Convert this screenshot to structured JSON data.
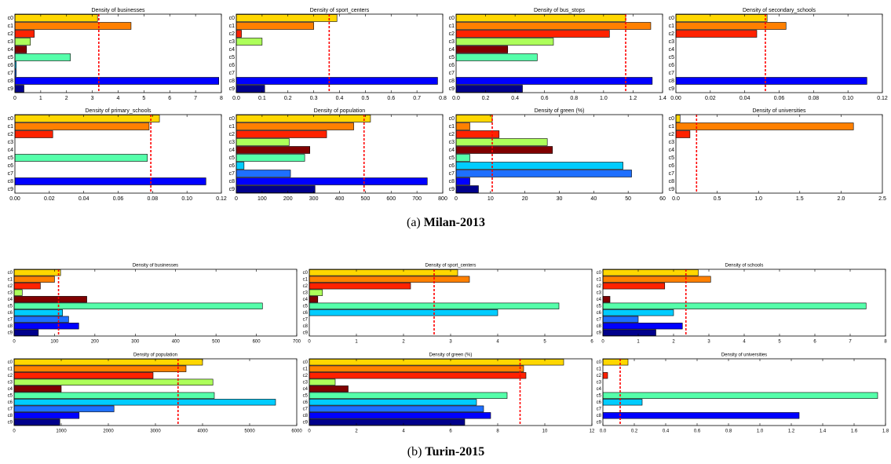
{
  "chart_data": [
    {
      "type": "bar",
      "orientation": "horizontal",
      "title": "Density of businesses",
      "categories": [
        "c0",
        "c1",
        "c2",
        "c3",
        "c4",
        "c5",
        "c6",
        "c7",
        "c8",
        "c9"
      ],
      "values": [
        3.2,
        4.5,
        0.75,
        0.6,
        0.45,
        2.15,
        0.05,
        0.05,
        7.9,
        0.35
      ],
      "colors": [
        "#ffd700",
        "#ff8000",
        "#ff2200",
        "#adff5a",
        "#800000",
        "#55ffaa",
        "#00ccff",
        "#1e6fff",
        "#0000ff",
        "#00008b"
      ],
      "xlim": [
        0,
        8
      ],
      "xticks": [
        0,
        1,
        2,
        3,
        4,
        5,
        6,
        7,
        8
      ],
      "mean_line": 3.25
    },
    {
      "type": "bar",
      "orientation": "horizontal",
      "title": "Density of sport_centers",
      "categories": [
        "c0",
        "c1",
        "c2",
        "c3",
        "c4",
        "c5",
        "c6",
        "c7",
        "c8",
        "c9"
      ],
      "values": [
        0.39,
        0.3,
        0.02,
        0.1,
        0,
        0,
        0,
        0,
        0.78,
        0.11
      ],
      "colors": [
        "#ffd700",
        "#ff8000",
        "#ff2200",
        "#adff5a",
        "#800000",
        "#55ffaa",
        "#00ccff",
        "#1e6fff",
        "#0000ff",
        "#00008b"
      ],
      "xlim": [
        0,
        0.8
      ],
      "xticks": [
        {
          "value": 0,
          "label": "0.0"
        },
        0.1,
        0.2,
        0.3,
        0.4,
        0.5,
        0.6,
        0.7,
        0.8
      ],
      "mean_line": 0.36
    },
    {
      "type": "bar",
      "orientation": "horizontal",
      "title": "Density of bus_stops",
      "categories": [
        "c0",
        "c1",
        "c2",
        "c3",
        "c4",
        "c5",
        "c6",
        "c7",
        "c8",
        "c9"
      ],
      "values": [
        1.15,
        1.32,
        1.04,
        0.66,
        0.35,
        0.55,
        0,
        0,
        1.33,
        0.45
      ],
      "colors": [
        "#ffd700",
        "#ff8000",
        "#ff2200",
        "#adff5a",
        "#800000",
        "#55ffaa",
        "#00ccff",
        "#1e6fff",
        "#0000ff",
        "#00008b"
      ],
      "xlim": [
        0,
        1.4
      ],
      "xticks": [
        {
          "value": 0,
          "label": "0.0"
        },
        0.2,
        0.4,
        0.6,
        0.8,
        {
          "value": 1,
          "label": "1.0"
        },
        1.2,
        1.4
      ],
      "mean_line": 1.15
    },
    {
      "type": "bar",
      "orientation": "horizontal",
      "title": "Density of secondary_schools",
      "categories": [
        "c0",
        "c1",
        "c2",
        "c3",
        "c4",
        "c5",
        "c6",
        "c7",
        "c8",
        "c9"
      ],
      "values": [
        0.053,
        0.064,
        0.047,
        0,
        0,
        0,
        0,
        0,
        0.111,
        0
      ],
      "colors": [
        "#ffd700",
        "#ff8000",
        "#ff2200",
        "#adff5a",
        "#800000",
        "#55ffaa",
        "#00ccff",
        "#1e6fff",
        "#0000ff",
        "#00008b"
      ],
      "xlim": [
        0,
        0.12
      ],
      "xticks": [
        {
          "value": 0,
          "label": "0.00"
        },
        0.02,
        0.04,
        0.06,
        0.08,
        {
          "value": 0.1,
          "label": "0.10"
        },
        0.12
      ],
      "mean_line": 0.052
    },
    {
      "type": "bar",
      "orientation": "horizontal",
      "title": "Density of primary_schools",
      "categories": [
        "c0",
        "c1",
        "c2",
        "c3",
        "c4",
        "c5",
        "c6",
        "c7",
        "c8",
        "c9"
      ],
      "values": [
        0.084,
        0.078,
        0.022,
        0,
        0,
        0.077,
        0,
        0,
        0.111,
        0
      ],
      "colors": [
        "#ffd700",
        "#ff8000",
        "#ff2200",
        "#adff5a",
        "#800000",
        "#55ffaa",
        "#00ccff",
        "#1e6fff",
        "#0000ff",
        "#00008b"
      ],
      "xlim": [
        0,
        0.12
      ],
      "xticks": [
        {
          "value": 0,
          "label": "0.00"
        },
        0.02,
        0.04,
        0.06,
        0.08,
        {
          "value": 0.1,
          "label": "0.10"
        },
        0.12
      ],
      "mean_line": 0.079
    },
    {
      "type": "bar",
      "orientation": "horizontal",
      "title": "Density of population",
      "categories": [
        "c0",
        "c1",
        "c2",
        "c3",
        "c4",
        "c5",
        "c6",
        "c7",
        "c8",
        "c9"
      ],
      "values": [
        520,
        455,
        350,
        205,
        285,
        265,
        30,
        210,
        740,
        305
      ],
      "colors": [
        "#ffd700",
        "#ff8000",
        "#ff2200",
        "#adff5a",
        "#800000",
        "#55ffaa",
        "#00ccff",
        "#1e6fff",
        "#0000ff",
        "#00008b"
      ],
      "xlim": [
        0,
        800
      ],
      "xticks": [
        0,
        100,
        200,
        300,
        400,
        500,
        600,
        700,
        800
      ],
      "mean_line": 495
    },
    {
      "type": "bar",
      "orientation": "horizontal",
      "title": "Density of green (%)",
      "categories": [
        "c0",
        "c1",
        "c2",
        "c3",
        "c4",
        "c5",
        "c6",
        "c7",
        "c8",
        "c9"
      ],
      "values": [
        10.5,
        4,
        12.5,
        26.5,
        28,
        4,
        48.5,
        51,
        4,
        6.5
      ],
      "colors": [
        "#ffd700",
        "#ff8000",
        "#ff2200",
        "#adff5a",
        "#800000",
        "#55ffaa",
        "#00ccff",
        "#1e6fff",
        "#0000ff",
        "#00008b"
      ],
      "xlim": [
        0,
        60
      ],
      "xticks": [
        0,
        10,
        20,
        30,
        40,
        50,
        60
      ],
      "mean_line": 10.5
    },
    {
      "type": "bar",
      "orientation": "horizontal",
      "title": "Density of universities",
      "categories": [
        "c0",
        "c1",
        "c2",
        "c3",
        "c4",
        "c5",
        "c6",
        "c7",
        "c8",
        "c9"
      ],
      "values": [
        0.05,
        2.15,
        0.17,
        0,
        0,
        0,
        0,
        0,
        0,
        0
      ],
      "colors": [
        "#ffd700",
        "#ff8000",
        "#ff2200",
        "#adff5a",
        "#800000",
        "#55ffaa",
        "#00ccff",
        "#1e6fff",
        "#0000ff",
        "#00008b"
      ],
      "xlim": [
        0,
        2.5
      ],
      "xticks": [
        {
          "value": 0,
          "label": "0.0"
        },
        0.5,
        {
          "value": 1,
          "label": "1.0"
        },
        1.5,
        {
          "value": 2,
          "label": "2.0"
        },
        2.5
      ],
      "mean_line": 0.25
    },
    {
      "type": "bar",
      "orientation": "horizontal",
      "title": "Density of businesses",
      "categories": [
        "c0",
        "c1",
        "c2",
        "c3",
        "c4",
        "c5",
        "c6",
        "c7",
        "c8",
        "c9"
      ],
      "values": [
        115,
        100,
        65,
        20,
        180,
        615,
        120,
        135,
        160,
        60
      ],
      "colors": [
        "#ffd700",
        "#ff8000",
        "#ff2200",
        "#adff5a",
        "#800000",
        "#55ffaa",
        "#00ccff",
        "#1e6fff",
        "#0000ff",
        "#00008b"
      ],
      "xlim": [
        0,
        700
      ],
      "xticks": [
        0,
        100,
        200,
        300,
        400,
        500,
        600,
        700
      ],
      "mean_line": 110
    },
    {
      "type": "bar",
      "orientation": "horizontal",
      "title": "Density of sport_centers",
      "categories": [
        "c0",
        "c1",
        "c2",
        "c3",
        "c4",
        "c5",
        "c6",
        "c7",
        "c8",
        "c9"
      ],
      "values": [
        3.15,
        3.4,
        2.15,
        0.28,
        0.18,
        5.3,
        4.0,
        0,
        0,
        0
      ],
      "colors": [
        "#ffd700",
        "#ff8000",
        "#ff2200",
        "#adff5a",
        "#800000",
        "#55ffaa",
        "#00ccff",
        "#1e6fff",
        "#0000ff",
        "#00008b"
      ],
      "xlim": [
        0,
        6
      ],
      "xticks": [
        0,
        1,
        2,
        3,
        4,
        5,
        6
      ],
      "mean_line": 2.65
    },
    {
      "type": "bar",
      "orientation": "horizontal",
      "title": "Density of schools",
      "categories": [
        "c0",
        "c1",
        "c2",
        "c3",
        "c4",
        "c5",
        "c6",
        "c7",
        "c8",
        "c9"
      ],
      "values": [
        2.7,
        3.05,
        1.75,
        0,
        0.2,
        7.45,
        2.0,
        1.0,
        2.25,
        1.5
      ],
      "colors": [
        "#ffd700",
        "#ff8000",
        "#ff2200",
        "#adff5a",
        "#800000",
        "#55ffaa",
        "#00ccff",
        "#1e6fff",
        "#0000ff",
        "#00008b"
      ],
      "xlim": [
        0,
        8
      ],
      "xticks": [
        0,
        1,
        2,
        3,
        4,
        5,
        6,
        7,
        8
      ],
      "mean_line": 2.35
    },
    {
      "type": "bar",
      "orientation": "horizontal",
      "title": "Density of population",
      "categories": [
        "c0",
        "c1",
        "c2",
        "c3",
        "c4",
        "c5",
        "c6",
        "c7",
        "c8",
        "c9"
      ],
      "values": [
        4000,
        3650,
        2950,
        4220,
        1000,
        4250,
        5550,
        2120,
        1380,
        970
      ],
      "colors": [
        "#ffd700",
        "#ff8000",
        "#ff2200",
        "#adff5a",
        "#800000",
        "#55ffaa",
        "#00ccff",
        "#1e6fff",
        "#0000ff",
        "#00008b"
      ],
      "xlim": [
        0,
        6000
      ],
      "xticks": [
        0,
        1000,
        2000,
        3000,
        4000,
        5000,
        6000
      ],
      "mean_line": 3480
    },
    {
      "type": "bar",
      "orientation": "horizontal",
      "title": "Density of green (%)",
      "categories": [
        "c0",
        "c1",
        "c2",
        "c3",
        "c4",
        "c5",
        "c6",
        "c7",
        "c8",
        "c9"
      ],
      "values": [
        10.8,
        9.1,
        9.2,
        1.1,
        1.65,
        8.4,
        7.1,
        7.4,
        7.7,
        6.6
      ],
      "colors": [
        "#ffd700",
        "#ff8000",
        "#ff2200",
        "#adff5a",
        "#800000",
        "#55ffaa",
        "#00ccff",
        "#1e6fff",
        "#0000ff",
        "#00008b"
      ],
      "xlim": [
        0,
        12
      ],
      "xticks": [
        0,
        2,
        4,
        6,
        8,
        10,
        12
      ],
      "mean_line": 8.95
    },
    {
      "type": "bar",
      "orientation": "horizontal",
      "title": "Density of universities",
      "categories": [
        "c0",
        "c1",
        "c2",
        "c3",
        "c4",
        "c5",
        "c6",
        "c7",
        "c8",
        "c9"
      ],
      "values": [
        0.16,
        0,
        0.03,
        0,
        0,
        1.75,
        0.25,
        0,
        1.25,
        0
      ],
      "colors": [
        "#ffd700",
        "#ff8000",
        "#ff2200",
        "#adff5a",
        "#800000",
        "#55ffaa",
        "#00ccff",
        "#1e6fff",
        "#0000ff",
        "#00008b"
      ],
      "xlim": [
        0,
        1.8
      ],
      "xticks": [
        {
          "value": 0,
          "label": "0.0"
        },
        0.2,
        0.4,
        0.6,
        0.8,
        {
          "value": 1,
          "label": "1.0"
        },
        1.2,
        1.4,
        1.6,
        1.8
      ],
      "mean_line": 0.11
    }
  ],
  "captions": [
    {
      "label": "(a)",
      "text": "Milan-2013"
    },
    {
      "label": "(b)",
      "text": "Turin-2015"
    }
  ]
}
